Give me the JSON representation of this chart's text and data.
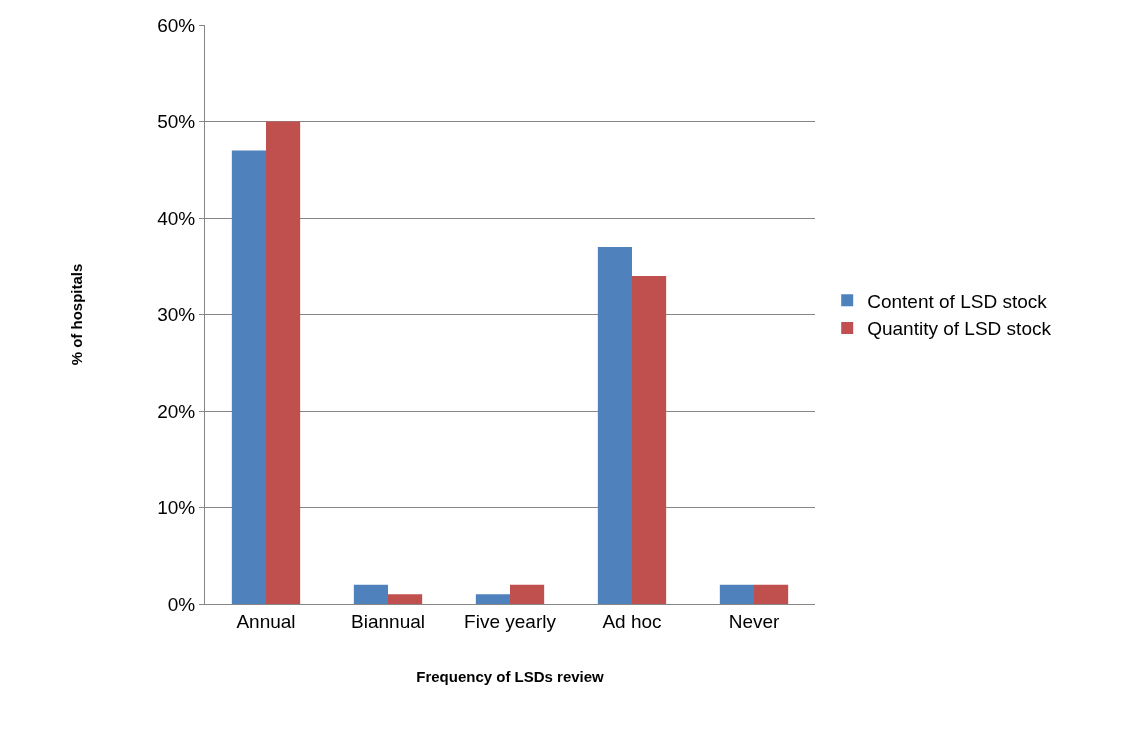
{
  "chart_data": {
    "type": "bar",
    "xlabel": "Frequency of LSDs review",
    "ylabel": "% of hospitals",
    "categories": [
      "Annual",
      "Biannual",
      "Five yearly",
      "Ad hoc",
      "Never"
    ],
    "series": [
      {
        "name": "Content of LSD stock",
        "color": "#4f81bd",
        "values": [
          47,
          2,
          1,
          37,
          2
        ]
      },
      {
        "name": "Quantity of LSD stock",
        "color": "#c0504d",
        "values": [
          50,
          1,
          2,
          34,
          2
        ]
      }
    ],
    "ylim": [
      0,
      60
    ],
    "yticks": [
      {
        "value": 0,
        "label": "0%"
      },
      {
        "value": 10,
        "label": "10%"
      },
      {
        "value": 20,
        "label": "20%"
      },
      {
        "value": 30,
        "label": "30%"
      },
      {
        "value": 40,
        "label": "40%"
      },
      {
        "value": 50,
        "label": "50%"
      },
      {
        "value": 60,
        "label": "60%"
      }
    ],
    "grid": "y",
    "legend": "right"
  }
}
